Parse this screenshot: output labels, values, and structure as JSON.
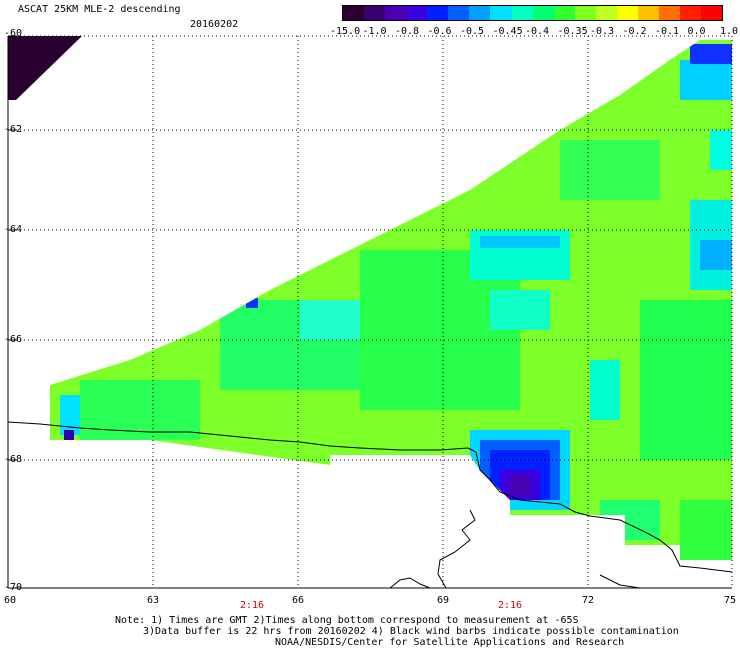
{
  "header": {
    "title": "ASCAT 25KM MLE-2 descending",
    "date": "20160202"
  },
  "colorbar": {
    "labels": [
      "-15.0",
      "-1.0",
      "-0.8",
      "-0.6",
      "-0.5",
      "-0.45",
      "-0.4",
      "-0.35",
      "-0.3",
      "-0.2",
      "-0.1",
      "0.0",
      "1.0"
    ],
    "colors": [
      "#2a0030",
      "#3a0070",
      "#4a00b0",
      "#3a00e0",
      "#0020ff",
      "#0060ff",
      "#00a0ff",
      "#00e0ff",
      "#00ffc0",
      "#00ff70",
      "#30ff30",
      "#80ff20",
      "#c0ff20",
      "#ffff00",
      "#ffc000",
      "#ff7000",
      "#ff2000",
      "#ff0000"
    ]
  },
  "axes": {
    "lat_labels": [
      "-60",
      "-62",
      "-64",
      "-66",
      "-68",
      "-70"
    ],
    "lon_labels": [
      "60",
      "63",
      "66",
      "69",
      "72",
      "75"
    ],
    "times": [
      "2:16",
      "2:16"
    ]
  },
  "notes": {
    "line1": "Note: 1) Times are GMT 2)Times along bottom correspond to measurement at -65S",
    "line2": "3)Data buffer is 22 hrs from 20160202 4) Black wind barbs indicate possible contamination",
    "line3": "NOAA/NESDIS/Center for Satellite Applications and Research"
  }
}
